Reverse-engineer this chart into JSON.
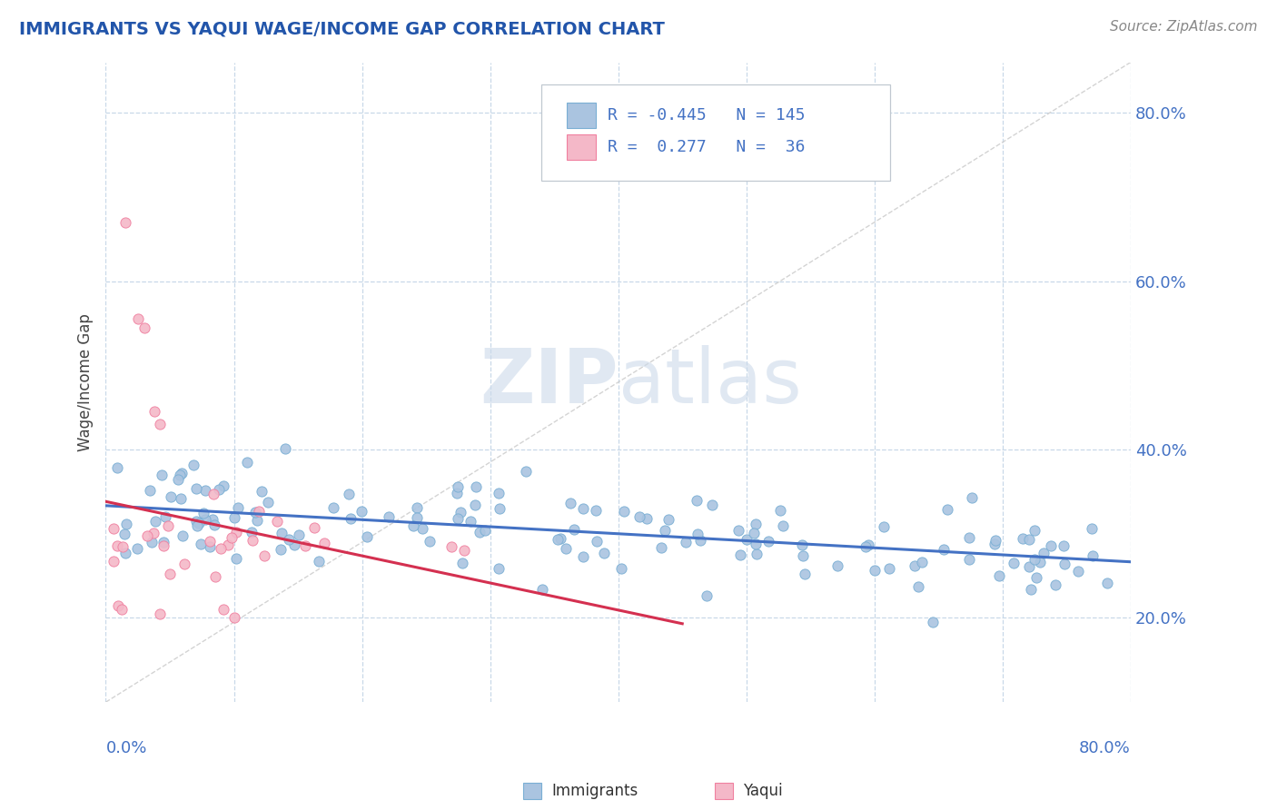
{
  "title": "IMMIGRANTS VS YAQUI WAGE/INCOME GAP CORRELATION CHART",
  "source_text": "Source: ZipAtlas.com",
  "ylabel": "Wage/Income Gap",
  "xlim": [
    0.0,
    0.8
  ],
  "ylim": [
    0.1,
    0.86
  ],
  "ytick_vals": [
    0.2,
    0.4,
    0.6,
    0.8
  ],
  "ytick_labels": [
    "20.0%",
    "40.0%",
    "60.0%",
    "80.0%"
  ],
  "blue_color": "#aac4e0",
  "pink_color": "#f4b8c8",
  "blue_edge": "#7aafd4",
  "pink_edge": "#f080a0",
  "trend_blue": "#4472c4",
  "trend_pink": "#d43050",
  "R_blue": -0.445,
  "N_blue": 145,
  "R_pink": 0.277,
  "N_pink": 36,
  "watermark_zip": "ZIP",
  "watermark_atlas": "atlas",
  "bg_color": "#ffffff",
  "grid_color": "#c8d8e8",
  "title_color": "#2255aa",
  "source_color": "#888888",
  "diag_color": "#cccccc",
  "legend_text_color": "#4472c4",
  "bottom_legend_color": "#333333"
}
